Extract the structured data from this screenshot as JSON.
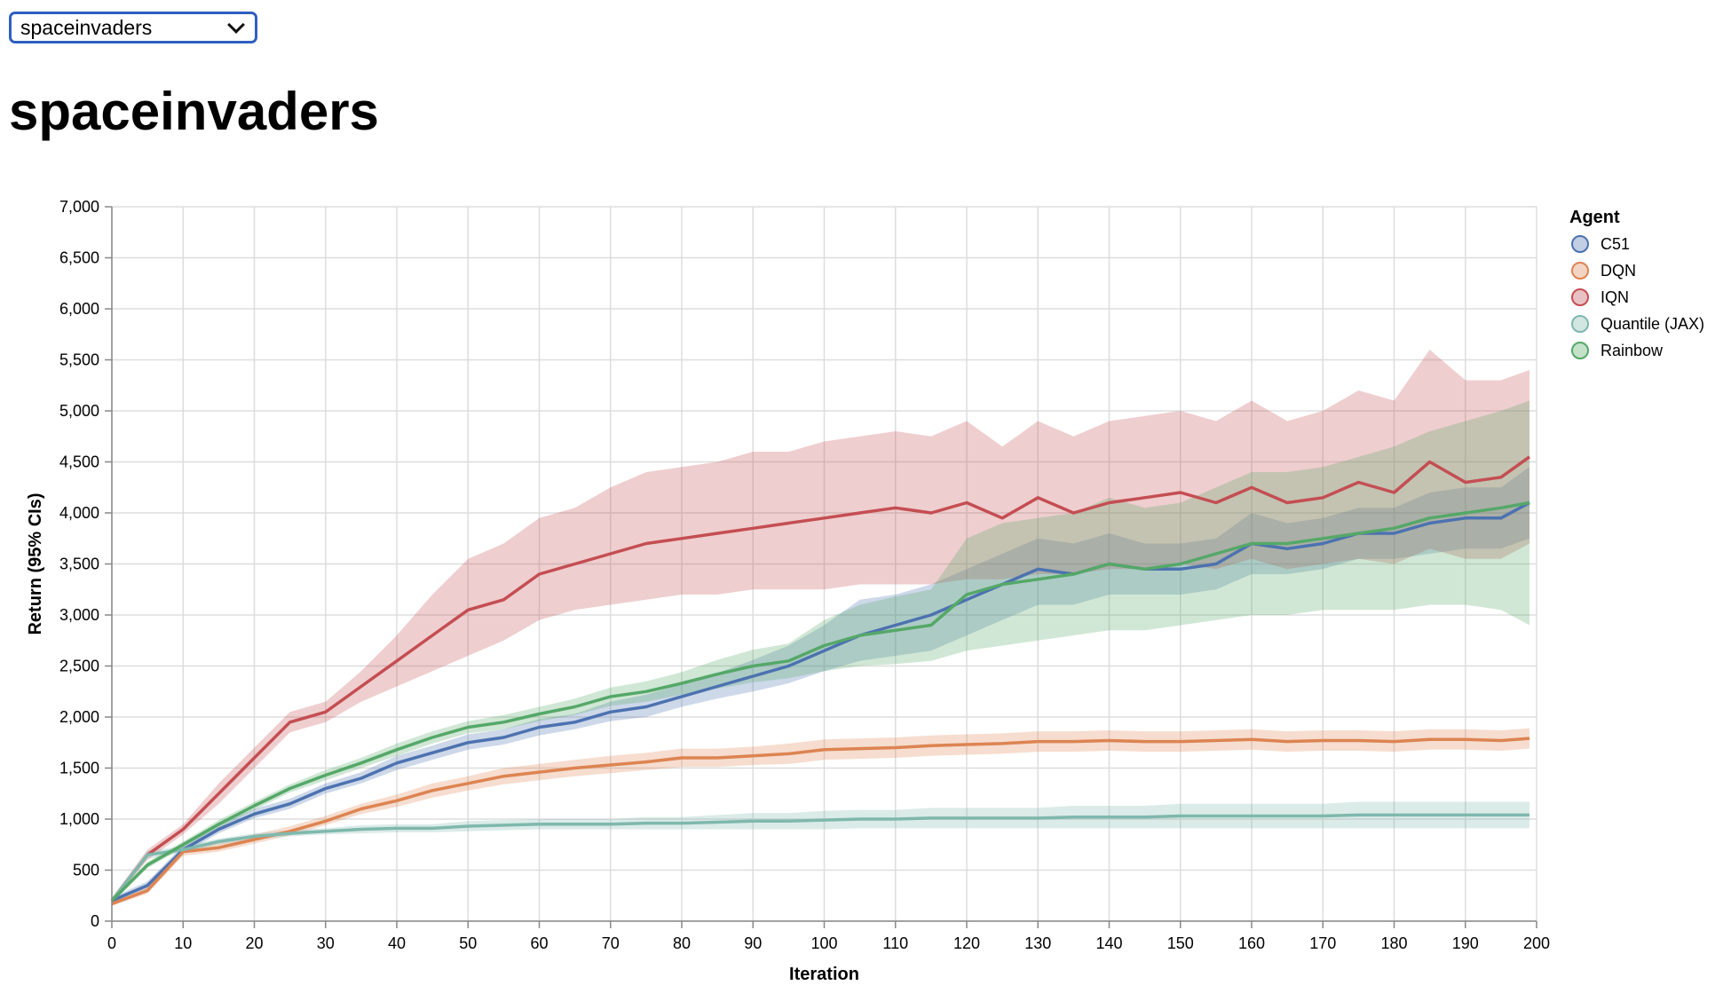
{
  "selector": {
    "value": "spaceinvaders"
  },
  "page_title": "spaceinvaders",
  "chart_data": {
    "type": "line",
    "title": "",
    "xlabel": "Iteration",
    "ylabel": "Return (95% CIs)",
    "xlim": [
      0,
      200
    ],
    "ylim": [
      0,
      7000
    ],
    "x_ticks": [
      "0",
      "10",
      "20",
      "30",
      "40",
      "50",
      "60",
      "70",
      "80",
      "90",
      "100",
      "110",
      "120",
      "130",
      "140",
      "150",
      "160",
      "170",
      "180",
      "190",
      "200"
    ],
    "y_ticks": [
      "0",
      "500",
      "1,000",
      "1,500",
      "2,000",
      "2,500",
      "3,000",
      "3,500",
      "4,000",
      "4,500",
      "5,000",
      "5,500",
      "6,000",
      "6,500",
      "7,000"
    ],
    "grid": true,
    "bands": "95% confidence interval shown as shaded area around each line",
    "legend": {
      "title": "Agent",
      "position": "right"
    },
    "series": [
      {
        "name": "C51",
        "color": "#4c72b0",
        "x": [
          0,
          5,
          10,
          15,
          20,
          25,
          30,
          35,
          40,
          45,
          50,
          55,
          60,
          65,
          70,
          75,
          80,
          85,
          90,
          95,
          100,
          105,
          110,
          115,
          120,
          125,
          130,
          135,
          140,
          145,
          150,
          155,
          160,
          165,
          170,
          175,
          180,
          185,
          190,
          195,
          199
        ],
        "y": [
          200,
          350,
          700,
          900,
          1050,
          1150,
          1300,
          1400,
          1550,
          1650,
          1750,
          1800,
          1900,
          1950,
          2050,
          2100,
          2200,
          2300,
          2400,
          2500,
          2650,
          2800,
          2900,
          3000,
          3150,
          3300,
          3450,
          3400,
          3500,
          3450,
          3450,
          3500,
          3700,
          3650,
          3700,
          3800,
          3800,
          3900,
          3950,
          3950,
          4100
        ],
        "lower": [
          180,
          320,
          660,
          860,
          1010,
          1100,
          1250,
          1350,
          1480,
          1580,
          1680,
          1730,
          1820,
          1880,
          1960,
          2000,
          2100,
          2180,
          2250,
          2330,
          2450,
          2550,
          2600,
          2650,
          2800,
          2950,
          3100,
          3100,
          3200,
          3200,
          3200,
          3250,
          3400,
          3400,
          3450,
          3550,
          3550,
          3600,
          3650,
          3650,
          3750
        ],
        "upper": [
          230,
          390,
          740,
          950,
          1100,
          1200,
          1350,
          1460,
          1620,
          1720,
          1830,
          1880,
          1980,
          2030,
          2150,
          2220,
          2320,
          2430,
          2560,
          2700,
          2900,
          3150,
          3200,
          3300,
          3450,
          3600,
          3750,
          3700,
          3800,
          3700,
          3700,
          3750,
          4000,
          3900,
          3950,
          4050,
          4050,
          4200,
          4250,
          4250,
          4450
        ]
      },
      {
        "name": "DQN",
        "color": "#dd8452",
        "x": [
          0,
          5,
          10,
          15,
          20,
          25,
          30,
          35,
          40,
          45,
          50,
          55,
          60,
          65,
          70,
          75,
          80,
          85,
          90,
          95,
          100,
          105,
          110,
          115,
          120,
          125,
          130,
          135,
          140,
          145,
          150,
          155,
          160,
          165,
          170,
          175,
          180,
          185,
          190,
          195,
          199
        ],
        "y": [
          170,
          300,
          680,
          720,
          800,
          880,
          980,
          1100,
          1180,
          1280,
          1350,
          1420,
          1460,
          1500,
          1530,
          1560,
          1600,
          1600,
          1620,
          1640,
          1680,
          1690,
          1700,
          1720,
          1730,
          1740,
          1760,
          1760,
          1770,
          1760,
          1760,
          1770,
          1780,
          1760,
          1770,
          1770,
          1760,
          1780,
          1780,
          1770,
          1790
        ],
        "lower": [
          150,
          270,
          640,
          680,
          760,
          840,
          940,
          1050,
          1120,
          1210,
          1280,
          1340,
          1380,
          1420,
          1450,
          1480,
          1510,
          1510,
          1530,
          1540,
          1580,
          1590,
          1600,
          1620,
          1630,
          1640,
          1660,
          1660,
          1670,
          1660,
          1660,
          1670,
          1680,
          1660,
          1670,
          1670,
          1660,
          1680,
          1680,
          1670,
          1690
        ],
        "upper": [
          200,
          340,
          720,
          770,
          850,
          930,
          1030,
          1150,
          1240,
          1350,
          1420,
          1500,
          1540,
          1580,
          1620,
          1650,
          1690,
          1690,
          1710,
          1740,
          1780,
          1790,
          1800,
          1820,
          1830,
          1840,
          1860,
          1860,
          1870,
          1860,
          1860,
          1870,
          1880,
          1860,
          1870,
          1870,
          1860,
          1880,
          1880,
          1870,
          1890
        ]
      },
      {
        "name": "IQN",
        "color": "#c44e52",
        "x": [
          0,
          5,
          10,
          15,
          20,
          25,
          30,
          35,
          40,
          45,
          50,
          55,
          60,
          65,
          70,
          75,
          80,
          85,
          90,
          95,
          100,
          105,
          110,
          115,
          120,
          125,
          130,
          135,
          140,
          145,
          150,
          155,
          160,
          165,
          170,
          175,
          180,
          185,
          190,
          195,
          199
        ],
        "y": [
          200,
          650,
          900,
          1250,
          1600,
          1950,
          2050,
          2300,
          2550,
          2800,
          3050,
          3150,
          3400,
          3500,
          3600,
          3700,
          3750,
          3800,
          3850,
          3900,
          3950,
          4000,
          4050,
          4000,
          4100,
          3950,
          4150,
          4000,
          4100,
          4150,
          4200,
          4100,
          4250,
          4100,
          4150,
          4300,
          4200,
          4500,
          4300,
          4350,
          4550
        ],
        "lower": [
          180,
          600,
          850,
          1150,
          1500,
          1850,
          1950,
          2150,
          2300,
          2450,
          2600,
          2750,
          2950,
          3050,
          3100,
          3150,
          3200,
          3200,
          3250,
          3250,
          3250,
          3300,
          3300,
          3300,
          3350,
          3350,
          3400,
          3400,
          3450,
          3450,
          3500,
          3450,
          3550,
          3450,
          3500,
          3550,
          3500,
          3650,
          3550,
          3550,
          3700
        ],
        "upper": [
          230,
          700,
          950,
          1350,
          1700,
          2050,
          2150,
          2450,
          2800,
          3200,
          3550,
          3700,
          3950,
          4050,
          4250,
          4400,
          4450,
          4500,
          4600,
          4600,
          4700,
          4750,
          4800,
          4750,
          4900,
          4650,
          4900,
          4750,
          4900,
          4950,
          5000,
          4900,
          5100,
          4900,
          5000,
          5200,
          5100,
          5600,
          5300,
          5300,
          5400
        ]
      },
      {
        "name": "Quantile (JAX)",
        "color": "#7fb8ad",
        "x": [
          0,
          5,
          10,
          15,
          20,
          25,
          30,
          35,
          40,
          45,
          50,
          55,
          60,
          65,
          70,
          75,
          80,
          85,
          90,
          95,
          100,
          105,
          110,
          115,
          120,
          125,
          130,
          135,
          140,
          145,
          150,
          155,
          160,
          165,
          170,
          175,
          180,
          185,
          190,
          195,
          199
        ],
        "y": [
          200,
          650,
          700,
          780,
          830,
          860,
          880,
          900,
          910,
          910,
          930,
          940,
          950,
          950,
          950,
          960,
          960,
          970,
          980,
          980,
          990,
          1000,
          1000,
          1010,
          1010,
          1010,
          1010,
          1020,
          1020,
          1020,
          1030,
          1030,
          1030,
          1030,
          1030,
          1040,
          1040,
          1040,
          1040,
          1040,
          1040
        ],
        "lower": [
          180,
          610,
          670,
          750,
          800,
          830,
          850,
          860,
          870,
          870,
          880,
          890,
          900,
          900,
          900,
          900,
          900,
          900,
          900,
          900,
          900,
          910,
          910,
          910,
          910,
          910,
          910,
          910,
          910,
          910,
          910,
          910,
          910,
          910,
          910,
          910,
          910,
          910,
          910,
          910,
          910
        ],
        "upper": [
          220,
          690,
          730,
          810,
          860,
          890,
          910,
          940,
          950,
          950,
          980,
          990,
          1000,
          1000,
          1000,
          1020,
          1020,
          1040,
          1060,
          1060,
          1080,
          1090,
          1090,
          1110,
          1110,
          1110,
          1110,
          1130,
          1130,
          1130,
          1150,
          1150,
          1150,
          1150,
          1150,
          1170,
          1170,
          1170,
          1170,
          1170,
          1170
        ]
      },
      {
        "name": "Rainbow",
        "color": "#55a868",
        "x": [
          0,
          5,
          10,
          15,
          20,
          25,
          30,
          35,
          40,
          45,
          50,
          55,
          60,
          65,
          70,
          75,
          80,
          85,
          90,
          95,
          100,
          105,
          110,
          115,
          120,
          125,
          130,
          135,
          140,
          145,
          150,
          155,
          160,
          165,
          170,
          175,
          180,
          185,
          190,
          195,
          199
        ],
        "y": [
          200,
          550,
          750,
          950,
          1130,
          1300,
          1430,
          1550,
          1680,
          1800,
          1900,
          1950,
          2030,
          2100,
          2200,
          2250,
          2330,
          2420,
          2500,
          2550,
          2700,
          2800,
          2850,
          2900,
          3200,
          3300,
          3350,
          3400,
          3500,
          3450,
          3500,
          3600,
          3700,
          3700,
          3750,
          3800,
          3850,
          3950,
          4000,
          4050,
          4100
        ],
        "lower": [
          180,
          520,
          720,
          910,
          1090,
          1260,
          1380,
          1500,
          1620,
          1740,
          1840,
          1880,
          1960,
          2020,
          2110,
          2150,
          2220,
          2280,
          2340,
          2380,
          2450,
          2500,
          2520,
          2550,
          2650,
          2700,
          2750,
          2800,
          2850,
          2850,
          2900,
          2950,
          3000,
          3000,
          3050,
          3050,
          3050,
          3100,
          3100,
          3050,
          2900
        ],
        "upper": [
          220,
          580,
          780,
          990,
          1170,
          1340,
          1480,
          1600,
          1740,
          1860,
          1960,
          2020,
          2100,
          2180,
          2290,
          2350,
          2440,
          2560,
          2660,
          2720,
          2950,
          3100,
          3180,
          3250,
          3750,
          3900,
          3950,
          4000,
          4150,
          4050,
          4100,
          4250,
          4400,
          4400,
          4450,
          4550,
          4650,
          4800,
          4900,
          5000,
          5100
        ]
      }
    ]
  }
}
